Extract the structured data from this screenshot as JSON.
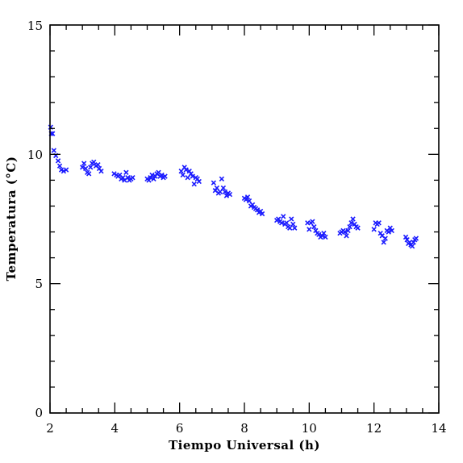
{
  "chart_data": {
    "type": "scatter",
    "title": "",
    "xlabel": "Tiempo Universal (h)",
    "ylabel": "Temperatura (°C)",
    "xlim": [
      2,
      14
    ],
    "ylim": [
      0,
      15
    ],
    "x_ticks": [
      "2",
      "4",
      "6",
      "8",
      "10",
      "12",
      "14"
    ],
    "y_ticks": [
      "0",
      "5",
      "10",
      "15"
    ],
    "marker": "x",
    "marker_color": "#1a1aff",
    "grid": false,
    "series": [
      {
        "points": [
          [
            2.02,
            11.05
          ],
          [
            2.04,
            10.8
          ],
          [
            2.08,
            10.8
          ],
          [
            2.12,
            10.15
          ],
          [
            2.18,
            9.95
          ],
          [
            2.25,
            9.75
          ],
          [
            2.3,
            9.55
          ],
          [
            2.35,
            9.4
          ],
          [
            2.42,
            9.35
          ],
          [
            2.5,
            9.4
          ],
          [
            3.0,
            9.5
          ],
          [
            3.05,
            9.65
          ],
          [
            3.1,
            9.45
          ],
          [
            3.15,
            9.3
          ],
          [
            3.2,
            9.25
          ],
          [
            3.25,
            9.5
          ],
          [
            3.3,
            9.65
          ],
          [
            3.35,
            9.7
          ],
          [
            3.42,
            9.55
          ],
          [
            3.48,
            9.6
          ],
          [
            3.52,
            9.45
          ],
          [
            3.58,
            9.35
          ],
          [
            3.98,
            9.25
          ],
          [
            4.05,
            9.2
          ],
          [
            4.1,
            9.15
          ],
          [
            4.15,
            9.2
          ],
          [
            4.2,
            9.05
          ],
          [
            4.25,
            9.1
          ],
          [
            4.3,
            9.0
          ],
          [
            4.35,
            9.3
          ],
          [
            4.4,
            9.1
          ],
          [
            4.45,
            9.0
          ],
          [
            4.5,
            9.05
          ],
          [
            4.55,
            9.1
          ],
          [
            5.0,
            9.05
          ],
          [
            5.05,
            9.0
          ],
          [
            5.1,
            9.1
          ],
          [
            5.15,
            9.2
          ],
          [
            5.2,
            9.05
          ],
          [
            5.25,
            9.15
          ],
          [
            5.3,
            9.25
          ],
          [
            5.35,
            9.3
          ],
          [
            5.4,
            9.15
          ],
          [
            5.45,
            9.2
          ],
          [
            5.5,
            9.1
          ],
          [
            5.55,
            9.15
          ],
          [
            6.05,
            9.35
          ],
          [
            6.1,
            9.2
          ],
          [
            6.15,
            9.5
          ],
          [
            6.2,
            9.4
          ],
          [
            6.25,
            9.1
          ],
          [
            6.3,
            9.35
          ],
          [
            6.35,
            9.25
          ],
          [
            6.4,
            9.15
          ],
          [
            6.45,
            8.85
          ],
          [
            6.5,
            9.1
          ],
          [
            6.55,
            9.05
          ],
          [
            6.6,
            8.95
          ],
          [
            7.05,
            8.9
          ],
          [
            7.1,
            8.6
          ],
          [
            7.15,
            8.7
          ],
          [
            7.2,
            8.5
          ],
          [
            7.25,
            8.55
          ],
          [
            7.3,
            9.05
          ],
          [
            7.35,
            8.7
          ],
          [
            7.4,
            8.55
          ],
          [
            7.45,
            8.4
          ],
          [
            7.5,
            8.5
          ],
          [
            7.55,
            8.45
          ],
          [
            8.0,
            8.3
          ],
          [
            8.05,
            8.25
          ],
          [
            8.1,
            8.35
          ],
          [
            8.15,
            8.2
          ],
          [
            8.2,
            8.0
          ],
          [
            8.25,
            8.05
          ],
          [
            8.3,
            7.95
          ],
          [
            8.35,
            7.9
          ],
          [
            8.4,
            7.85
          ],
          [
            8.45,
            7.75
          ],
          [
            8.5,
            7.8
          ],
          [
            8.55,
            7.7
          ],
          [
            9.0,
            7.45
          ],
          [
            9.05,
            7.5
          ],
          [
            9.1,
            7.4
          ],
          [
            9.15,
            7.35
          ],
          [
            9.2,
            7.6
          ],
          [
            9.25,
            7.3
          ],
          [
            9.3,
            7.35
          ],
          [
            9.35,
            7.2
          ],
          [
            9.4,
            7.15
          ],
          [
            9.45,
            7.5
          ],
          [
            9.5,
            7.3
          ],
          [
            9.55,
            7.15
          ],
          [
            9.95,
            7.35
          ],
          [
            10.0,
            7.1
          ],
          [
            10.05,
            7.35
          ],
          [
            10.1,
            7.4
          ],
          [
            10.15,
            7.2
          ],
          [
            10.2,
            7.05
          ],
          [
            10.25,
            6.95
          ],
          [
            10.3,
            6.9
          ],
          [
            10.35,
            6.8
          ],
          [
            10.4,
            6.85
          ],
          [
            10.45,
            6.95
          ],
          [
            10.5,
            6.8
          ],
          [
            10.95,
            6.95
          ],
          [
            11.0,
            7.0
          ],
          [
            11.05,
            7.05
          ],
          [
            11.1,
            7.0
          ],
          [
            11.15,
            6.85
          ],
          [
            11.2,
            7.05
          ],
          [
            11.25,
            7.2
          ],
          [
            11.3,
            7.35
          ],
          [
            11.35,
            7.5
          ],
          [
            11.4,
            7.3
          ],
          [
            11.45,
            7.2
          ],
          [
            11.5,
            7.15
          ],
          [
            12.0,
            7.1
          ],
          [
            12.05,
            7.35
          ],
          [
            12.1,
            7.3
          ],
          [
            12.15,
            7.35
          ],
          [
            12.2,
            6.95
          ],
          [
            12.25,
            6.85
          ],
          [
            12.3,
            6.6
          ],
          [
            12.35,
            6.75
          ],
          [
            12.4,
            7.05
          ],
          [
            12.45,
            7.0
          ],
          [
            12.5,
            7.15
          ],
          [
            12.55,
            7.05
          ],
          [
            12.98,
            6.8
          ],
          [
            13.02,
            6.7
          ],
          [
            13.06,
            6.55
          ],
          [
            13.1,
            6.6
          ],
          [
            13.14,
            6.5
          ],
          [
            13.18,
            6.45
          ],
          [
            13.22,
            6.6
          ],
          [
            13.26,
            6.7
          ],
          [
            13.3,
            6.75
          ]
        ]
      }
    ]
  }
}
